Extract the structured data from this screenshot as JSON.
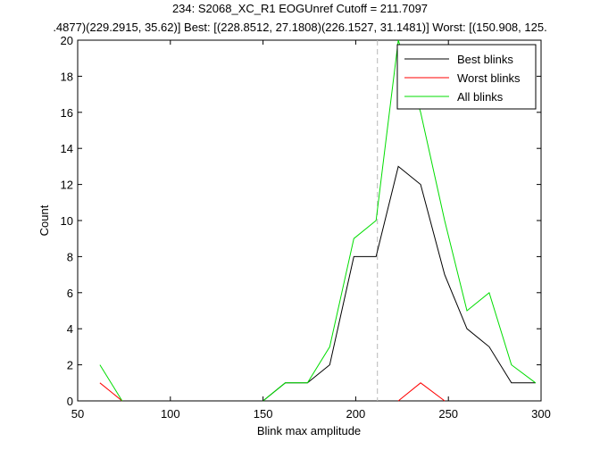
{
  "chart_data": {
    "type": "line",
    "title_lines": [
      "234: S2068_XC_R1 EOGUnref Cutoff = 211.7097",
      ".4877)(229.2915, 35.62)] Best: [(228.8512, 27.1808)(226.1527, 31.1481)] Worst: [(150.908, 125."
    ],
    "xlabel": "Blink max amplitude",
    "ylabel": "Count",
    "xlim": [
      50,
      300
    ],
    "ylim": [
      0,
      20
    ],
    "xticks": [
      50,
      100,
      150,
      200,
      250,
      300
    ],
    "yticks": [
      0,
      2,
      4,
      6,
      8,
      10,
      12,
      14,
      16,
      18,
      20
    ],
    "grid": false,
    "legend_position": "top-right",
    "cutoff": 211.7097,
    "series": [
      {
        "name": "Best blinks",
        "color": "#000000",
        "x": [
          150,
          162,
          174,
          186,
          199,
          211,
          223,
          235,
          248,
          260,
          272,
          284,
          297
        ],
        "y": [
          0,
          1,
          1,
          2,
          8,
          8,
          13,
          12,
          7,
          4,
          3,
          1,
          1
        ]
      },
      {
        "name": "Worst blinks",
        "color": "#ff0000",
        "x": [
          62,
          74
        ],
        "y": [
          1,
          0
        ],
        "x2": [
          223,
          235,
          248
        ],
        "y2": [
          0,
          1,
          0
        ]
      },
      {
        "name": "All blinks",
        "color": "#00dd00",
        "x": [
          62,
          74
        ],
        "y": [
          2,
          0
        ],
        "x2": [
          150,
          162,
          174,
          186,
          199,
          211,
          223,
          235,
          248,
          260,
          272,
          284,
          297
        ],
        "y2": [
          0,
          1,
          1,
          3,
          9,
          10,
          20,
          16,
          10,
          5,
          6,
          2,
          1
        ]
      }
    ]
  }
}
